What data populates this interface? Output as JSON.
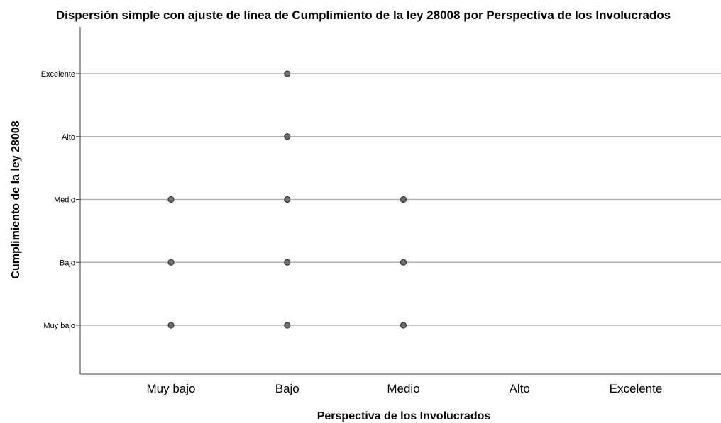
{
  "chart_data": {
    "type": "scatter",
    "title": "Dispersión simple con ajuste de línea de Cumplimiento de la ley 28008 por Perspectiva de los Involucrados",
    "xlabel": "Perspectiva de los Involucrados",
    "ylabel": "Cumplimiento de la ley 28008",
    "x_categories": [
      "Muy bajo",
      "Bajo",
      "Medio",
      "Alto",
      "Excelente"
    ],
    "y_categories": [
      "Muy bajo",
      "Bajo",
      "Medio",
      "Alto",
      "Excelente"
    ],
    "grid": "horizontal",
    "points": [
      {
        "x": "Muy bajo",
        "y": "Muy bajo"
      },
      {
        "x": "Muy bajo",
        "y": "Bajo"
      },
      {
        "x": "Muy bajo",
        "y": "Medio"
      },
      {
        "x": "Bajo",
        "y": "Muy bajo"
      },
      {
        "x": "Bajo",
        "y": "Bajo"
      },
      {
        "x": "Bajo",
        "y": "Medio"
      },
      {
        "x": "Bajo",
        "y": "Alto"
      },
      {
        "x": "Bajo",
        "y": "Excelente"
      },
      {
        "x": "Medio",
        "y": "Muy bajo"
      },
      {
        "x": "Medio",
        "y": "Bajo"
      },
      {
        "x": "Medio",
        "y": "Medio"
      }
    ]
  }
}
